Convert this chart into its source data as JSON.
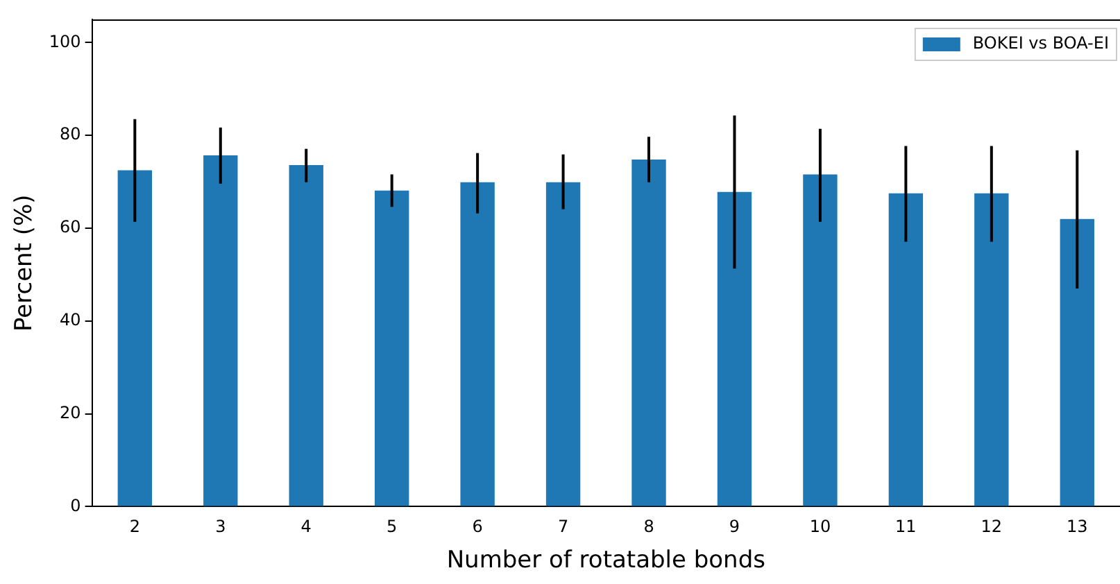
{
  "chart_data": {
    "type": "bar",
    "xlabel": "Number of rotatable bonds",
    "ylabel": "Percent (%)",
    "categories": [
      "2",
      "3",
      "4",
      "5",
      "6",
      "7",
      "8",
      "9",
      "10",
      "11",
      "12",
      "13"
    ],
    "series": [
      {
        "name": "BOKEI vs BOA-EI",
        "color": "#1f77b4",
        "values": [
          72.5,
          75.7,
          73.6,
          68.1,
          69.9,
          69.9,
          74.8,
          67.8,
          71.6,
          67.5,
          67.5,
          62.0
        ],
        "errors": [
          [
            61.4,
            83.5
          ],
          [
            69.6,
            81.7
          ],
          [
            69.9,
            77.1
          ],
          [
            64.6,
            71.6
          ],
          [
            63.2,
            76.2
          ],
          [
            64.1,
            75.9
          ],
          [
            69.9,
            79.7
          ],
          [
            51.3,
            84.3
          ],
          [
            61.4,
            81.4
          ],
          [
            57.1,
            77.7
          ],
          [
            57.1,
            77.7
          ],
          [
            47.0,
            76.8
          ]
        ]
      }
    ],
    "ylim": [
      0,
      105
    ],
    "yticks": [
      0,
      20,
      40,
      60,
      80,
      100
    ],
    "grid": false,
    "legend": "top right"
  }
}
